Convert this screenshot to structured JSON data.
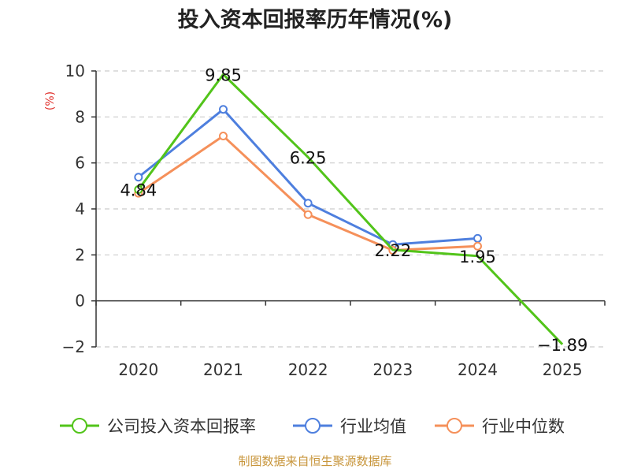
{
  "chart_data": {
    "type": "line",
    "title": "投入资本回报率历年情况(%)",
    "xlabel": "",
    "ylabel": "(%)",
    "categories": [
      "2020",
      "2021",
      "2022",
      "2023",
      "2024",
      "2025"
    ],
    "ylim": [
      -2,
      10
    ],
    "yticks": [
      -2,
      0,
      2,
      4,
      6,
      8,
      10
    ],
    "grid": true,
    "legend_position": "bottom",
    "series": [
      {
        "name": "公司投入资本回报率",
        "color": "#52c41a",
        "values": [
          4.84,
          9.85,
          6.25,
          2.22,
          1.95,
          -1.89
        ],
        "labels": [
          "4.84",
          "9.85",
          "6.25",
          "2.22",
          "1.95",
          "-1.89"
        ]
      },
      {
        "name": "行业均值",
        "color": "#4e7fde",
        "values": [
          5.38,
          8.33,
          4.25,
          2.45,
          2.72,
          null
        ]
      },
      {
        "name": "行业中位数",
        "color": "#f5905a",
        "values": [
          4.68,
          7.17,
          3.75,
          2.2,
          2.38,
          null
        ]
      }
    ]
  },
  "source_note": "制图数据来自恒生聚源数据库",
  "colors": {
    "axis": "#333333",
    "grid": "#cccccc",
    "ylabel": "#e0312c",
    "source": "#c8963c"
  }
}
